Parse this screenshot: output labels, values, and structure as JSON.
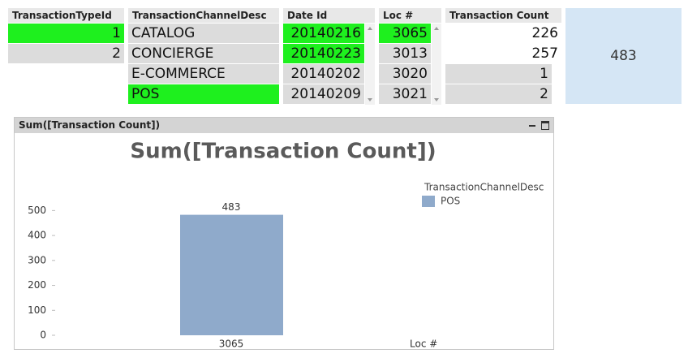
{
  "list_boxes": [
    {
      "title": "TransactionTypeId",
      "align": "right",
      "items": [
        {
          "text": "1",
          "state": "selected"
        },
        {
          "text": "2",
          "state": "excluded"
        }
      ]
    },
    {
      "title": "TransactionChannelDesc",
      "align": "left",
      "items": [
        {
          "text": "CATALOG",
          "state": "excluded"
        },
        {
          "text": "CONCIERGE",
          "state": "excluded"
        },
        {
          "text": "E-COMMERCE",
          "state": "excluded"
        },
        {
          "text": "POS",
          "state": "selected"
        }
      ]
    },
    {
      "title": "Date Id",
      "align": "right",
      "items": [
        {
          "text": "20140216",
          "state": "selected"
        },
        {
          "text": "20140223",
          "state": "selected"
        },
        {
          "text": "20140202",
          "state": "excluded"
        },
        {
          "text": "20140209",
          "state": "excluded"
        }
      ]
    },
    {
      "title": "Loc #",
      "align": "right",
      "items": [
        {
          "text": "3065",
          "state": "selected"
        },
        {
          "text": "3013",
          "state": "excluded"
        },
        {
          "text": "3020",
          "state": "excluded"
        },
        {
          "text": "3021",
          "state": "excluded"
        }
      ]
    },
    {
      "title": "Transaction Count",
      "align": "right",
      "items": [
        {
          "text": "226",
          "state": "optional"
        },
        {
          "text": "257",
          "state": "optional"
        },
        {
          "text": "1",
          "state": "excluded"
        },
        {
          "text": "2",
          "state": "excluded"
        }
      ]
    }
  ],
  "kpi": {
    "value": "483"
  },
  "chart_data": {
    "type": "bar",
    "window_title": "Sum([Transaction Count])",
    "title": "Sum([Transaction Count])",
    "x_label": "Loc #",
    "legend_title": "TransactionChannelDesc",
    "categories": [
      "3065"
    ],
    "series": [
      {
        "name": "POS",
        "color": "#8faacb",
        "values": [
          483
        ]
      }
    ],
    "ylim": [
      0,
      550
    ],
    "yticks": [
      0,
      100,
      200,
      300,
      400,
      500
    ],
    "show_value_labels": true
  }
}
